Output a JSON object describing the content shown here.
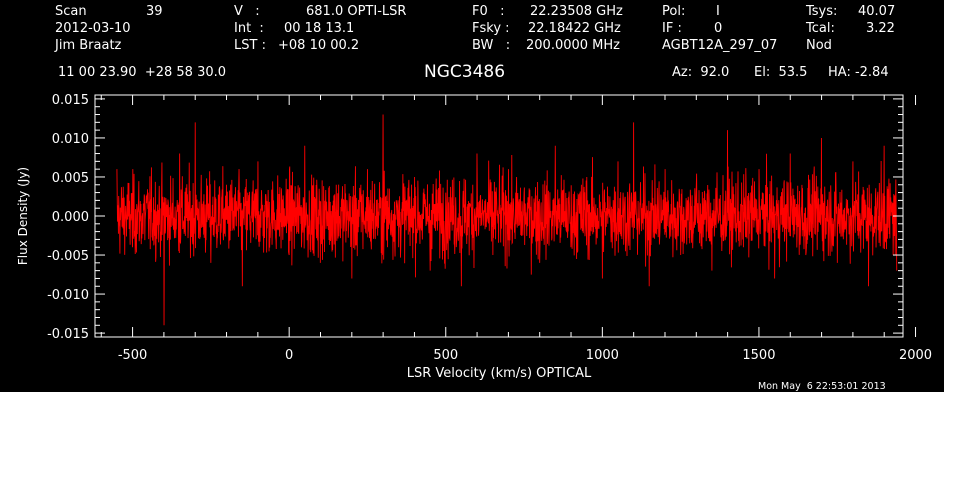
{
  "header": {
    "scan_label": "Scan",
    "scan_value": "39",
    "date": "2012-03-10",
    "observer": "Jim Braatz",
    "v_label": "V   :",
    "v_value": "681.0 OPTI-LSR",
    "int_label": "Int  :",
    "int_value": "00 18 13.1",
    "lst_label": "LST :",
    "lst_value": "+08 10 00.2",
    "f0_label": "F0   :",
    "f0_value": "22.23508 GHz",
    "fsky_label": "Fsky :",
    "fsky_value": "22.18422 GHz",
    "bw_label": "BW   :",
    "bw_value": "200.0000 MHz",
    "pol_label": "Pol:",
    "pol_value": "I",
    "if_label": "IF :",
    "if_value": "0",
    "project": "AGBT12A_297_07",
    "tsys_label": "Tsys:",
    "tsys_value": "40.07",
    "tcal_label": "Tcal:",
    "tcal_value": "3.22",
    "proc": "Nod",
    "coords": "11 00 23.90  +28 58 30.0",
    "source": "NGC3486",
    "az": "Az:  92.0",
    "el": "El:  53.5",
    "ha": "HA: -2.84",
    "timestamp": "Mon May  6 22:53:01 2013"
  },
  "colors": {
    "background": "#000000",
    "foreground": "#ffffff",
    "series": "#ff0000"
  },
  "chart_data": {
    "type": "line",
    "title": "NGC3486",
    "xlabel": "LSR Velocity (km/s) OPTICAL",
    "ylabel": "Flux Density (Jy)",
    "xlim": [
      -620,
      1960
    ],
    "ylim": [
      -0.0155,
      0.0155
    ],
    "x_ticks": [
      -500,
      0,
      500,
      1000,
      1500,
      2000
    ],
    "x_tick_labels": [
      "-500",
      "0",
      "500",
      "1000",
      "1500",
      "2000"
    ],
    "y_ticks": [
      -0.015,
      -0.01,
      -0.005,
      0.0,
      0.005,
      0.01,
      0.015
    ],
    "y_tick_labels": [
      "-0.015",
      "-0.010",
      "-0.005",
      "0.000",
      "0.005",
      "0.010",
      "0.015"
    ],
    "grid": false,
    "series": [
      {
        "x_start": -550,
        "x_end": 1940,
        "points": 2600,
        "mean": 0.0,
        "rms": 0.004,
        "min": -0.014,
        "max": 0.0135,
        "description_values": [
          [
            -550,
            0.006
          ],
          [
            -500,
            -0.004
          ],
          [
            -450,
            0.003
          ],
          [
            -400,
            -0.014
          ],
          [
            -350,
            0.008
          ],
          [
            -300,
            0.012
          ],
          [
            -250,
            -0.006
          ],
          [
            -200,
            0.004
          ],
          [
            -150,
            -0.009
          ],
          [
            -100,
            0.007
          ],
          [
            -50,
            0.002
          ],
          [
            0,
            -0.005
          ],
          [
            50,
            0.009
          ],
          [
            100,
            -0.006
          ],
          [
            150,
            0.004
          ],
          [
            200,
            -0.008
          ],
          [
            250,
            0.006
          ],
          [
            300,
            0.013
          ],
          [
            350,
            -0.004
          ],
          [
            400,
            0.005
          ],
          [
            450,
            -0.007
          ],
          [
            500,
            0.003
          ],
          [
            550,
            -0.009
          ],
          [
            600,
            0.008
          ],
          [
            650,
            -0.005
          ],
          [
            700,
            0.006
          ],
          [
            750,
            0.003
          ],
          [
            800,
            -0.006
          ],
          [
            850,
            0.009
          ],
          [
            900,
            -0.004
          ],
          [
            950,
            0.005
          ],
          [
            1000,
            -0.008
          ],
          [
            1050,
            0.007
          ],
          [
            1100,
            0.012
          ],
          [
            1150,
            -0.009
          ],
          [
            1200,
            0.006
          ],
          [
            1250,
            -0.005
          ],
          [
            1300,
            0.004
          ],
          [
            1350,
            -0.007
          ],
          [
            1400,
            0.011
          ],
          [
            1450,
            -0.004
          ],
          [
            1500,
            0.006
          ],
          [
            1550,
            -0.008
          ],
          [
            1600,
            0.008
          ],
          [
            1650,
            -0.005
          ],
          [
            1700,
            0.01
          ],
          [
            1750,
            -0.006
          ],
          [
            1800,
            0.007
          ],
          [
            1850,
            -0.009
          ],
          [
            1900,
            0.009
          ],
          [
            1940,
            -0.007
          ]
        ]
      }
    ]
  }
}
